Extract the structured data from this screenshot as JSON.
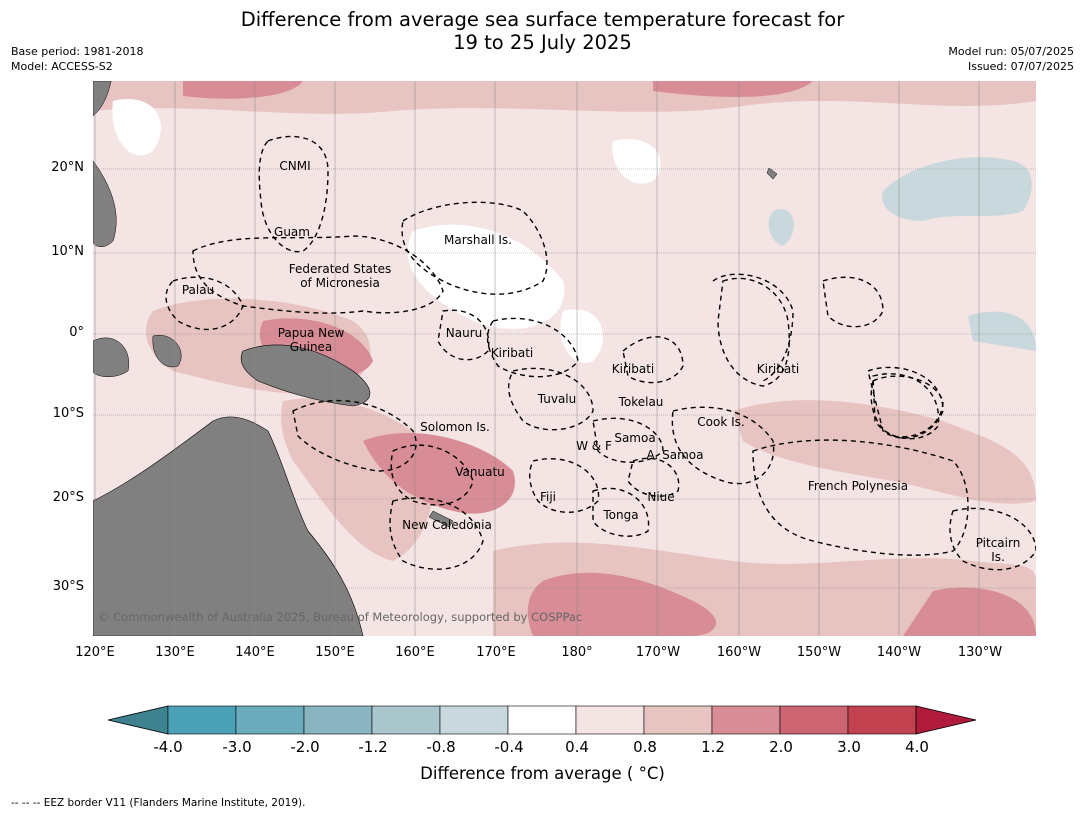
{
  "title_line1": "Difference from average sea surface temperature forecast for",
  "title_line2": "19 to 25 July 2025",
  "meta_left": [
    "Base period: 1981-2018",
    "Model: ACCESS-S2"
  ],
  "meta_right": [
    "Model run: 05/07/2025",
    "Issued: 07/07/2025"
  ],
  "lat_labels": [
    "20°N",
    "10°N",
    "0°",
    "10°S",
    "20°S",
    "30°S"
  ],
  "lon_labels": [
    "120°E",
    "130°E",
    "140°E",
    "150°E",
    "160°E",
    "170°E",
    "180°",
    "170°W",
    "160°W",
    "150°W",
    "140°W",
    "130°W"
  ],
  "places": [
    {
      "text": "CNMI"
    },
    {
      "text": "Guam"
    },
    {
      "text": "Marshall Is."
    },
    {
      "text": "Federated States\nof Micronesia"
    },
    {
      "text": "Palau"
    },
    {
      "text": "Papua New\nGuinea"
    },
    {
      "text": "Nauru"
    },
    {
      "text": "Kiribati"
    },
    {
      "text": "Kiribati"
    },
    {
      "text": "Kiribati"
    },
    {
      "text": "Tuvalu"
    },
    {
      "text": "Tokelau"
    },
    {
      "text": "Solomon Is."
    },
    {
      "text": "Samoa"
    },
    {
      "text": "W & F"
    },
    {
      "text": "A. Samoa"
    },
    {
      "text": "Cook Is."
    },
    {
      "text": "Vanuatu"
    },
    {
      "text": "Fiji"
    },
    {
      "text": "Niue"
    },
    {
      "text": "Tonga"
    },
    {
      "text": "New Caledonia"
    },
    {
      "text": "French Polynesia"
    },
    {
      "text": "Pitcairn\nIs."
    }
  ],
  "copyright": "© Commonwealth of Australia 2025, Bureau of Meteorology, supported by COSPPac",
  "colorbar": {
    "ticks": [
      "-4.0",
      "-3.0",
      "-2.0",
      "-1.2",
      "-0.8",
      "-0.4",
      "0.4",
      "0.8",
      "1.2",
      "2.0",
      "3.0",
      "4.0"
    ],
    "colors": [
      "#3e8290",
      "#4aa0b4",
      "#6cacbd",
      "#8bb4c1",
      "#a9c6cc",
      "#c8d8dc",
      "#ffffff",
      "#f4e5e4",
      "#e7c4c1",
      "#d88c96",
      "#cc6471",
      "#c1414f",
      "#b01b3b"
    ],
    "title": "Difference from average ( °C)"
  },
  "footer": "--  --  -- EEZ border V11 (Flanders Marine Institute, 2019).",
  "colors": {
    "land": "#808080",
    "eez_border": "#000000",
    "gridline": "#888888"
  }
}
